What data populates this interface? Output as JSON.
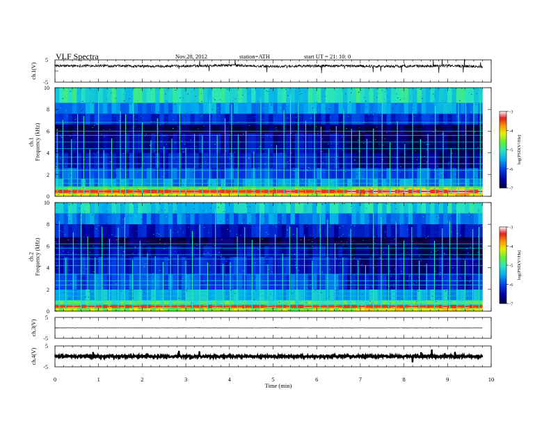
{
  "header": {
    "title": "VLF  Spectra",
    "date": "Nov.28, 2012",
    "station": "station=ATH",
    "start": "start  UT  =    21: 10: 0"
  },
  "chart_data": [
    {
      "type": "line",
      "panel": "ch1-waveform",
      "ylabel": "ch.1(V)",
      "ylim": [
        -5,
        5
      ],
      "yticks": [
        "5",
        "-5"
      ],
      "x_range_min": [
        0,
        9.8
      ],
      "baseline_v": 2.2,
      "noise_v": 0.6,
      "drift_v": [
        [
          0,
          2.3
        ],
        [
          1,
          2.4
        ],
        [
          2,
          2.1
        ],
        [
          3,
          2.2
        ],
        [
          4,
          2.6
        ],
        [
          5,
          2.0
        ],
        [
          6,
          2.3
        ],
        [
          7,
          2.2
        ],
        [
          8,
          2.1
        ],
        [
          9,
          2.4
        ],
        [
          9.8,
          2.0
        ]
      ]
    },
    {
      "type": "heatmap",
      "panel": "ch1-spectrogram",
      "ylabel": "ch.1\nFrequency  (kHz)",
      "xlim": [
        0,
        10
      ],
      "ylim": [
        0,
        10
      ],
      "yticks": [
        "0",
        "2",
        "4",
        "6",
        "8",
        "10"
      ],
      "colorbar": {
        "label": "log(PSD(V²/Hz)",
        "range": [
          -7,
          -3
        ],
        "ticks": [
          "-3",
          "-4",
          "-5",
          "-6",
          "-7"
        ]
      },
      "bands_khz": [
        {
          "f": [
            0,
            0.3
          ],
          "level": -4.2
        },
        {
          "f": [
            0.3,
            0.6
          ],
          "level": -3.4
        },
        {
          "f": [
            0.6,
            0.9
          ],
          "level": -4.6
        },
        {
          "f": [
            0.9,
            1.6
          ],
          "level": -5.6
        },
        {
          "f": [
            1.6,
            2.6
          ],
          "level": -5.9
        },
        {
          "f": [
            2.6,
            4.0
          ],
          "level": -6.3
        },
        {
          "f": [
            4.0,
            5.8
          ],
          "level": -6.5
        },
        {
          "f": [
            5.8,
            6.6
          ],
          "level": -6.9
        },
        {
          "f": [
            6.6,
            7.6
          ],
          "level": -6.2
        },
        {
          "f": [
            7.6,
            8.6
          ],
          "level": -5.6
        },
        {
          "f": [
            8.6,
            10.0
          ],
          "level": -5.1
        }
      ],
      "tones_khz": [
        0.8,
        1.2,
        1.6,
        2.4,
        3.0,
        3.6,
        4.4,
        5.0,
        5.6,
        6.0,
        6.8
      ],
      "impulse_times_min": [
        0.05,
        0.18,
        0.38,
        0.52,
        0.66,
        0.8,
        1.0,
        1.12,
        1.3,
        1.5,
        1.62,
        1.8,
        2.0,
        2.2,
        2.35,
        2.5,
        2.68,
        2.86,
        3.0,
        3.2,
        3.38,
        3.55,
        3.72,
        3.9,
        4.05,
        4.2,
        4.38,
        4.56,
        4.72,
        4.9,
        5.08,
        5.25,
        5.4,
        5.58,
        5.75,
        5.95,
        6.1,
        6.28,
        6.45,
        6.62,
        6.8,
        6.98,
        7.15,
        7.3,
        7.5,
        7.68,
        7.85,
        8.02,
        8.2,
        8.38,
        8.55,
        8.72,
        8.9,
        9.08,
        9.25,
        9.42,
        9.6,
        9.75
      ],
      "regime_change_min": 6.7
    },
    {
      "type": "heatmap",
      "panel": "ch2-spectrogram",
      "ylabel": "ch.2\nFrequency  (kHz)",
      "xlim": [
        0,
        10
      ],
      "ylim": [
        0,
        10
      ],
      "yticks": [
        "0",
        "2",
        "4",
        "6",
        "8",
        "10"
      ],
      "colorbar": {
        "label": "log(PSD(V²/Hz)",
        "range": [
          -7,
          -3
        ],
        "ticks": [
          "-3",
          "-4",
          "-5",
          "-6",
          "-7"
        ]
      },
      "bands_khz": [
        {
          "f": [
            0,
            0.3
          ],
          "level": -4.4
        },
        {
          "f": [
            0.3,
            0.6
          ],
          "level": -3.6
        },
        {
          "f": [
            0.6,
            1.0
          ],
          "level": -4.8
        },
        {
          "f": [
            1.0,
            2.0
          ],
          "level": -5.4
        },
        {
          "f": [
            2.0,
            3.4
          ],
          "level": -5.9
        },
        {
          "f": [
            3.4,
            5.0
          ],
          "level": -6.2
        },
        {
          "f": [
            5.0,
            6.0
          ],
          "level": -6.5
        },
        {
          "f": [
            6.0,
            6.8
          ],
          "level": -6.9
        },
        {
          "f": [
            6.8,
            8.0
          ],
          "level": -6.3
        },
        {
          "f": [
            8.0,
            9.0
          ],
          "level": -5.7
        },
        {
          "f": [
            9.0,
            10.0
          ],
          "level": -5.2
        }
      ],
      "tones_khz": [
        0.6,
        1.0,
        1.4,
        1.8,
        2.4,
        2.8,
        3.4,
        4.2,
        4.8,
        5.2,
        5.8,
        6.2
      ],
      "impulse_times_min": [
        0.1,
        0.25,
        0.42,
        0.6,
        0.75,
        0.92,
        1.08,
        1.25,
        1.45,
        1.6,
        1.78,
        1.95,
        2.12,
        2.3,
        2.48,
        2.65,
        2.82,
        3.0,
        3.15,
        3.32,
        3.5,
        3.68,
        3.85,
        4.02,
        4.18,
        4.35,
        4.52,
        4.7,
        4.88,
        5.05,
        5.22,
        5.38,
        5.55,
        5.72,
        5.9,
        6.08,
        6.25,
        6.42,
        6.6,
        6.78,
        6.95,
        7.12,
        7.3,
        7.48,
        7.65,
        7.82,
        8.0,
        8.18,
        8.35,
        8.52,
        8.7,
        8.88,
        9.05,
        9.22,
        9.4,
        9.58,
        9.72
      ],
      "regime_change_min": 6.7
    },
    {
      "type": "line",
      "panel": "ch3-waveform",
      "ylabel": "ch.3(V)",
      "ylim": [
        -5,
        5
      ],
      "yticks": [
        "5",
        "-5"
      ],
      "x_range_min": [
        0,
        9.8
      ],
      "baseline_v": 0.0,
      "noise_v": 0.05,
      "drift_v": [
        [
          0,
          0
        ],
        [
          9.8,
          0
        ]
      ]
    },
    {
      "type": "line",
      "panel": "ch4-waveform",
      "ylabel": "ch.4(V)",
      "ylim": [
        -5,
        5
      ],
      "yticks": [
        "5",
        "-5"
      ],
      "x_range_min": [
        0,
        9.8
      ],
      "baseline_v": 0.0,
      "noise_v": 0.5,
      "drift_v": [
        [
          0,
          0
        ],
        [
          9.8,
          0
        ]
      ]
    }
  ],
  "xaxis": {
    "label": "Time  (min)",
    "xlim": [
      0,
      10
    ],
    "ticks": [
      "0",
      "1",
      "2",
      "3",
      "4",
      "5",
      "6",
      "7",
      "8",
      "9",
      "10"
    ]
  }
}
